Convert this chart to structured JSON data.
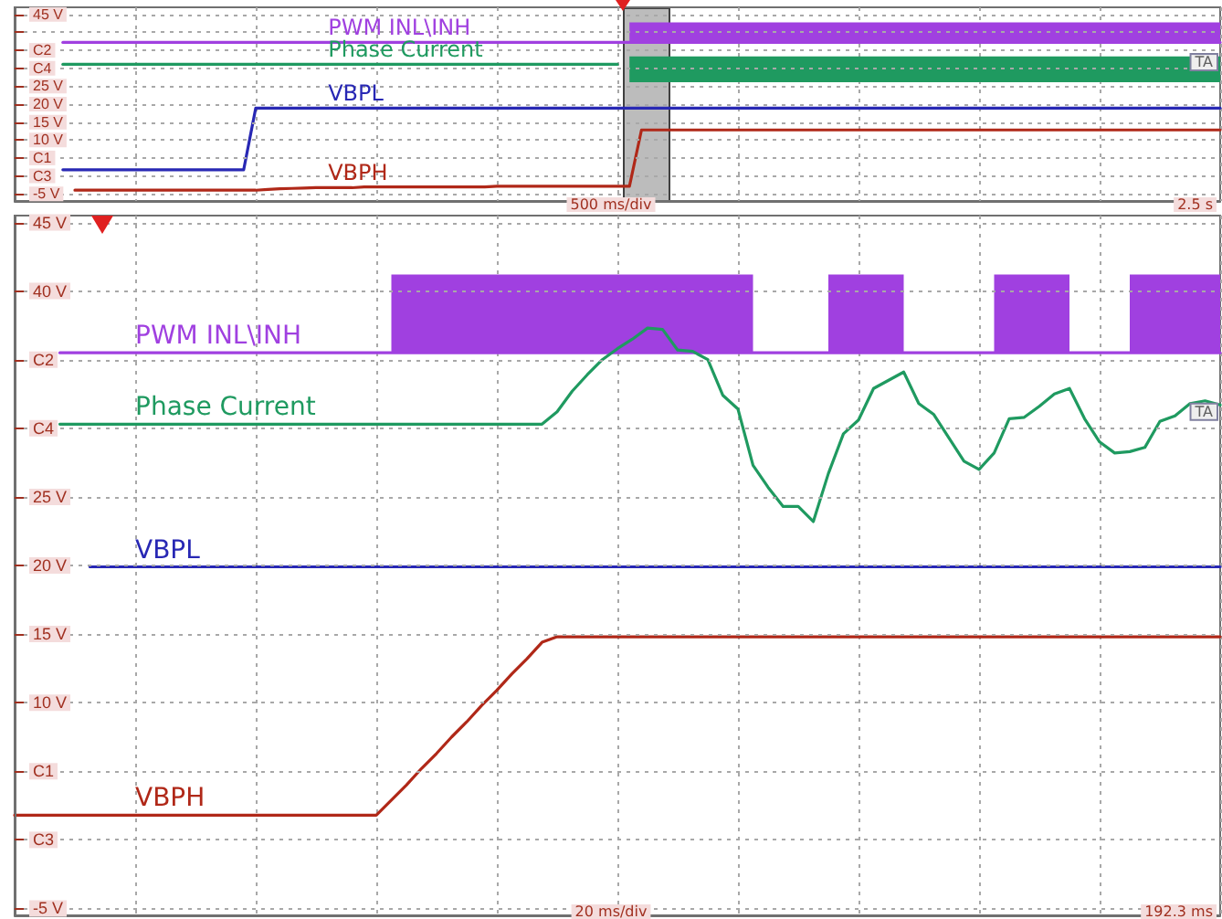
{
  "chart_data": [
    {
      "type": "line",
      "categories": [
        null,
        null,
        null,
        null,
        null,
        null,
        null,
        null,
        null,
        null,
        null,
        null,
        null,
        null,
        null,
        null,
        null,
        null,
        null,
        null,
        null,
        null,
        null,
        null,
        null,
        null,
        null,
        null,
        null,
        null,
        null,
        null,
        null,
        null,
        null,
        null,
        null,
        null,
        null,
        null,
        null,
        null,
        null,
        null,
        null,
        null,
        null,
        null,
        null,
        null,
        null,
        null,
        null,
        null,
        null,
        null,
        null,
        null,
        null,
        null,
        null,
        null,
        null,
        null,
        null,
        null,
        null,
        null,
        null,
        null,
        null,
        null,
        null,
        null,
        null,
        null,
        null,
        null,
        null,
        null,
        null,
        null,
        null,
        null,
        null,
        null,
        null,
        null,
        null,
        null,
        null,
        null,
        null,
        null,
        null,
        null,
        null,
        null,
        null,
        null,
        null
      ],
      "ylim": [
        -7,
        47
      ],
      "yticks": [
        {
          "value": -5,
          "label": "-5 V"
        },
        {
          "value": 0,
          "label": "C3"
        },
        {
          "value": 5,
          "label": "C1"
        },
        {
          "value": 10,
          "label": "10 V"
        },
        {
          "value": 15,
          "label": "15 V"
        },
        {
          "value": 20,
          "label": "20 V"
        },
        {
          "value": 25,
          "label": "25 V"
        },
        {
          "value": 30,
          "label": "C4"
        },
        {
          "value": 35,
          "label": "C2"
        },
        {
          "value": 40,
          "label": null
        },
        {
          "value": 45,
          "label": "45 V"
        }
      ],
      "tick_labels": "y",
      "grid": true,
      "legend": false,
      "annotations": [
        "500 ms/div",
        "2.5 s",
        {
          "text": "TA",
          "y": 31.7
        }
      ],
      "series": [
        {
          "name": "PWM INL\\INH",
          "color": "#a040e0",
          "values": [
            null,
            null,
            null,
            null,
            37.2,
            37.2,
            37.2,
            37.2,
            37.2,
            37.2,
            37.2,
            37.2,
            37.2,
            37.2,
            37.2,
            37.2,
            37.2,
            37.2,
            37.2,
            37.2,
            37.2,
            37.2,
            37.2,
            37.2,
            37.2,
            37.2,
            37.2,
            37.2,
            37.2,
            37.2,
            37.2,
            37.2,
            37.2,
            37.2,
            37.2,
            37.2,
            37.2,
            37.2,
            37.2,
            37.2,
            37.2,
            37.2,
            37.2,
            37.2,
            37.2,
            37.2,
            37.2,
            37.2,
            37.2,
            37.2,
            37.2,
            37.2,
            37.2,
            37.2,
            37.2,
            37.2,
            37.2,
            37.2,
            37.2,
            37.2,
            37.2,
            37.2,
            37.2,
            37.2,
            37.2,
            37.2,
            37.2,
            37.2,
            37.2,
            37.2,
            37.2,
            37.2,
            37.2,
            37.2,
            37.2,
            37.2,
            37.2,
            37.2,
            37.2,
            37.2,
            37.2,
            37.2,
            37.2,
            37.2,
            37.2,
            37.2,
            37.2,
            37.2,
            37.2,
            37.2,
            37.2,
            37.2,
            37.2,
            37.2,
            37.2,
            37.2,
            37.2,
            37.2,
            37.2,
            37.2,
            37.2
          ],
          "upper": [
            null,
            null,
            null,
            null,
            null,
            null,
            null,
            null,
            null,
            null,
            null,
            null,
            null,
            null,
            null,
            null,
            null,
            null,
            null,
            null,
            null,
            null,
            null,
            null,
            null,
            null,
            null,
            null,
            null,
            null,
            null,
            null,
            null,
            null,
            null,
            null,
            null,
            null,
            null,
            null,
            null,
            null,
            null,
            null,
            null,
            null,
            null,
            null,
            null,
            null,
            null,
            42.8,
            42.8,
            42.8,
            42.8,
            42.8,
            42.8,
            42.8,
            42.8,
            42.8,
            42.8,
            42.8,
            42.8,
            42.8,
            42.8,
            42.8,
            42.8,
            42.8,
            42.8,
            42.8,
            42.8,
            42.8,
            42.8,
            42.8,
            42.8,
            42.8,
            42.8,
            42.8,
            42.8,
            42.8,
            42.8,
            42.8,
            42.8,
            42.8,
            42.8,
            42.8,
            42.8,
            42.8,
            42.8,
            42.8,
            42.8,
            42.8,
            42.8,
            42.8,
            42.8,
            42.8,
            42.8,
            42.8,
            42.8,
            42.8,
            42.8
          ],
          "lower": [
            null,
            null,
            null,
            null,
            null,
            null,
            null,
            null,
            null,
            null,
            null,
            null,
            null,
            null,
            null,
            null,
            null,
            null,
            null,
            null,
            null,
            null,
            null,
            null,
            null,
            null,
            null,
            null,
            null,
            null,
            null,
            null,
            null,
            null,
            null,
            null,
            null,
            null,
            null,
            null,
            null,
            null,
            null,
            null,
            null,
            null,
            null,
            null,
            null,
            null,
            null,
            37.2,
            37.2,
            37.2,
            37.2,
            37.2,
            37.2,
            37.2,
            37.2,
            37.2,
            37.2,
            37.2,
            37.2,
            37.2,
            37.2,
            37.2,
            37.2,
            37.2,
            37.2,
            37.2,
            37.2,
            37.2,
            37.2,
            37.2,
            37.2,
            37.2,
            37.2,
            37.2,
            37.2,
            37.2,
            37.2,
            37.2,
            37.2,
            37.2,
            37.2,
            37.2,
            37.2,
            37.2,
            37.2,
            37.2,
            37.2,
            37.2,
            37.2,
            37.2,
            37.2,
            37.2,
            37.2,
            37.2,
            37.2,
            37.2,
            37.2
          ]
        },
        {
          "name": "Phase Current",
          "color": "#1f9a60",
          "values": [
            null,
            null,
            null,
            null,
            31.1,
            31.1,
            31.1,
            31.1,
            31.1,
            31.1,
            31.1,
            31.1,
            31.1,
            31.1,
            31.1,
            31.1,
            31.1,
            31.1,
            31.1,
            31.1,
            31.1,
            31.1,
            31.1,
            31.1,
            31.1,
            31.1,
            31.1,
            31.1,
            31.1,
            31.1,
            31.1,
            31.1,
            31.1,
            31.1,
            31.1,
            31.1,
            31.1,
            31.1,
            31.1,
            31.1,
            31.1,
            31.1,
            31.1,
            31.1,
            31.1,
            31.1,
            31.1,
            31.1,
            31.1,
            31.1,
            31.1,
            null,
            null,
            null,
            null,
            null,
            null,
            null,
            null,
            null,
            null,
            null,
            null,
            null,
            null,
            null,
            null,
            null,
            null,
            null,
            null,
            null,
            null,
            null,
            null,
            null,
            null,
            null,
            null,
            null,
            null,
            null,
            null,
            null,
            null,
            null,
            null,
            null,
            null,
            null,
            null,
            null,
            null,
            null,
            null,
            null,
            null,
            null,
            null,
            null,
            null
          ],
          "upper": [
            null,
            null,
            null,
            null,
            null,
            null,
            null,
            null,
            null,
            null,
            null,
            null,
            null,
            null,
            null,
            null,
            null,
            null,
            null,
            null,
            null,
            null,
            null,
            null,
            null,
            null,
            null,
            null,
            null,
            null,
            null,
            null,
            null,
            null,
            null,
            null,
            null,
            null,
            null,
            null,
            null,
            null,
            null,
            null,
            null,
            null,
            null,
            null,
            null,
            null,
            null,
            33.3,
            33.3,
            33.3,
            33.3,
            33.3,
            33.3,
            33.3,
            33.3,
            33.3,
            33.3,
            33.3,
            33.3,
            33.3,
            33.3,
            33.3,
            33.3,
            33.3,
            33.3,
            33.3,
            33.3,
            33.3,
            33.3,
            33.3,
            33.3,
            33.3,
            33.3,
            33.3,
            33.3,
            33.3,
            33.3,
            33.3,
            33.3,
            33.3,
            33.3,
            33.3,
            33.3,
            33.3,
            33.3,
            33.3,
            33.3,
            33.3,
            33.3,
            33.3,
            33.3,
            33.3,
            33.3,
            33.3,
            33.3,
            33.3,
            33.3
          ],
          "lower": [
            null,
            null,
            null,
            null,
            null,
            null,
            null,
            null,
            null,
            null,
            null,
            null,
            null,
            null,
            null,
            null,
            null,
            null,
            null,
            null,
            null,
            null,
            null,
            null,
            null,
            null,
            null,
            null,
            null,
            null,
            null,
            null,
            null,
            null,
            null,
            null,
            null,
            null,
            null,
            null,
            null,
            null,
            null,
            null,
            null,
            null,
            null,
            null,
            null,
            null,
            null,
            26.1,
            26.1,
            26.1,
            26.1,
            26.1,
            26.1,
            26.1,
            26.1,
            26.1,
            26.1,
            26.1,
            26.1,
            26.1,
            26.1,
            26.1,
            26.1,
            26.1,
            26.1,
            26.1,
            26.1,
            26.1,
            26.1,
            26.1,
            26.1,
            26.1,
            26.1,
            26.1,
            26.1,
            26.1,
            26.1,
            26.1,
            26.1,
            26.1,
            26.1,
            26.1,
            26.1,
            26.1,
            26.1,
            26.1,
            26.1,
            26.1,
            26.1,
            26.1,
            26.1,
            26.1,
            26.1,
            26.1,
            26.1,
            26.1,
            26.1
          ]
        },
        {
          "name": "VBPL",
          "color": "#2828b4",
          "values": [
            null,
            null,
            null,
            null,
            1.7,
            1.7,
            1.7,
            1.7,
            1.7,
            1.7,
            1.7,
            1.7,
            1.7,
            1.7,
            1.7,
            1.7,
            1.7,
            1.7,
            1.7,
            1.7,
            18.9,
            18.9,
            18.9,
            18.9,
            18.9,
            18.9,
            18.9,
            18.9,
            18.9,
            18.9,
            18.9,
            18.9,
            18.9,
            18.9,
            18.9,
            18.9,
            18.9,
            18.9,
            18.9,
            18.9,
            18.9,
            18.9,
            18.9,
            18.9,
            18.9,
            18.9,
            18.9,
            18.9,
            18.9,
            18.9,
            18.9,
            18.9,
            18.9,
            18.9,
            18.9,
            18.9,
            18.9,
            18.9,
            18.9,
            18.9,
            18.9,
            18.9,
            18.9,
            18.9,
            18.9,
            18.9,
            18.9,
            18.9,
            18.9,
            18.9,
            18.9,
            18.9,
            18.9,
            18.9,
            18.9,
            18.9,
            18.9,
            18.9,
            18.9,
            18.9,
            18.9,
            18.9,
            18.9,
            18.9,
            18.9,
            18.9,
            18.9,
            18.9,
            18.9,
            18.9,
            18.9,
            18.9,
            18.9,
            18.9,
            18.9,
            18.9,
            18.9,
            18.9,
            18.9,
            18.9,
            18.9
          ]
        },
        {
          "name": "VBPH",
          "color": "#b02818",
          "values": [
            null,
            null,
            null,
            null,
            null,
            -4.0,
            -4.0,
            -4.0,
            -4.0,
            -4.0,
            -4.0,
            -4.0,
            -4.0,
            -4.0,
            -4.0,
            -4.0,
            -4.0,
            -4.0,
            -4.0,
            -4.0,
            -4.0,
            -3.8,
            -3.6,
            -3.5,
            -3.4,
            -3.3,
            -3.3,
            -3.3,
            -3.3,
            -3.1,
            -3.1,
            -3.1,
            -3.1,
            -3.1,
            -3.1,
            -3.1,
            -3.1,
            -3.1,
            -3.1,
            -3.1,
            -2.9,
            -2.9,
            -2.9,
            -2.9,
            -2.9,
            -2.9,
            -2.9,
            -2.9,
            -2.9,
            -2.9,
            -2.9,
            -2.9,
            12.8,
            12.8,
            12.8,
            12.8,
            12.8,
            12.8,
            12.8,
            12.8,
            12.8,
            12.8,
            12.8,
            12.8,
            12.8,
            12.8,
            12.8,
            12.8,
            12.8,
            12.8,
            12.8,
            12.8,
            12.8,
            12.8,
            12.8,
            12.8,
            12.8,
            12.8,
            12.8,
            12.8,
            12.8,
            12.8,
            12.8,
            12.8,
            12.8,
            12.8,
            12.8,
            12.8,
            12.8,
            12.8,
            12.8,
            12.8,
            12.8,
            12.8,
            12.8,
            12.8,
            12.8,
            12.8,
            12.8,
            12.8,
            12.8
          ]
        }
      ]
    },
    {
      "type": "line",
      "categories": [
        null,
        null,
        null,
        null,
        null,
        null,
        null,
        null,
        null,
        null,
        null,
        null,
        null,
        null,
        null,
        null,
        null,
        null,
        null,
        null,
        null,
        null,
        null,
        null,
        null,
        null,
        null,
        null,
        null,
        null,
        null,
        null,
        null,
        null,
        null,
        null,
        null,
        null,
        null,
        null,
        null,
        null,
        null,
        null,
        null,
        null,
        null,
        null,
        null,
        null,
        null,
        null,
        null,
        null,
        null,
        null,
        null,
        null,
        null,
        null,
        null,
        null,
        null,
        null,
        null,
        null,
        null,
        null,
        null,
        null,
        null,
        null,
        null,
        null,
        null,
        null,
        null,
        null,
        null,
        null,
        null
      ],
      "ylim": [
        -5.5,
        45.5
      ],
      "yticks": [
        {
          "value": -5,
          "label": "-5 V"
        },
        {
          "value": 0,
          "label": "C3"
        },
        {
          "value": 5,
          "label": "C1"
        },
        {
          "value": 10,
          "label": "10 V"
        },
        {
          "value": 15,
          "label": "15 V"
        },
        {
          "value": 20,
          "label": "20 V"
        },
        {
          "value": 25,
          "label": "25 V"
        },
        {
          "value": 30,
          "label": "C4"
        },
        {
          "value": 35,
          "label": "C2"
        },
        {
          "value": 40,
          "label": "40 V"
        },
        {
          "value": 45,
          "label": "45 V"
        }
      ],
      "tick_labels": "y",
      "grid": true,
      "legend": false,
      "annotations": [
        "20 ms/div",
        "192.3 ms",
        {
          "text": "TA",
          "y": 31.2
        }
      ],
      "series": [
        {
          "name": "PWM INL\\INH",
          "color": "#a040e0",
          "values": [
            null,
            null,
            null,
            35.5,
            35.5,
            35.5,
            35.5,
            35.5,
            35.5,
            35.5,
            35.5,
            35.5,
            35.5,
            35.5,
            35.5,
            35.5,
            35.5,
            35.5,
            35.5,
            35.5,
            35.5,
            35.5,
            35.5,
            35.5,
            35.5,
            35.5,
            35.5,
            35.5,
            35.5,
            35.5,
            35.5,
            35.5,
            35.5,
            35.5,
            35.5,
            35.5,
            35.5,
            35.5,
            35.5,
            35.5,
            35.5,
            35.5,
            35.5,
            35.5,
            35.5,
            35.5,
            35.5,
            35.5,
            35.5,
            35.5,
            35.5,
            35.5,
            35.5,
            35.5,
            35.5,
            35.5,
            35.5,
            35.5,
            35.5,
            35.5,
            35.5,
            35.5,
            35.5,
            35.5,
            35.5,
            35.5,
            35.5,
            35.5,
            35.5,
            35.5,
            35.5,
            35.5,
            35.5,
            35.5,
            35.5,
            35.5,
            35.5,
            35.5,
            35.5,
            35.5,
            35.5
          ],
          "upper": [
            null,
            null,
            null,
            null,
            null,
            null,
            null,
            null,
            null,
            null,
            null,
            null,
            null,
            null,
            null,
            null,
            null,
            null,
            null,
            null,
            null,
            null,
            null,
            null,
            null,
            41.2,
            41.2,
            41.2,
            41.2,
            41.2,
            41.2,
            41.2,
            41.2,
            41.2,
            41.2,
            41.2,
            41.2,
            41.2,
            41.2,
            41.2,
            41.2,
            41.2,
            41.2,
            41.2,
            41.2,
            41.2,
            41.2,
            41.2,
            41.2,
            41.2,
            null,
            null,
            null,
            null,
            41.2,
            41.2,
            41.2,
            41.2,
            41.2,
            41.2,
            null,
            null,
            null,
            null,
            null,
            41.2,
            41.2,
            41.2,
            41.2,
            41.2,
            41.2,
            null,
            null,
            null,
            41.2,
            41.2,
            41.2,
            41.2,
            41.2,
            41.2,
            41.2
          ],
          "lower": [
            null,
            null,
            null,
            null,
            null,
            null,
            null,
            null,
            null,
            null,
            null,
            null,
            null,
            null,
            null,
            null,
            null,
            null,
            null,
            null,
            null,
            null,
            null,
            null,
            null,
            35.5,
            35.5,
            35.5,
            35.5,
            35.5,
            35.5,
            35.5,
            35.5,
            35.5,
            35.5,
            35.5,
            35.5,
            35.5,
            35.5,
            35.5,
            35.5,
            35.5,
            35.5,
            35.5,
            35.5,
            35.5,
            35.5,
            35.5,
            35.5,
            35.5,
            null,
            null,
            null,
            null,
            35.5,
            35.5,
            35.5,
            35.5,
            35.5,
            35.5,
            null,
            null,
            null,
            null,
            null,
            35.5,
            35.5,
            35.5,
            35.5,
            35.5,
            35.5,
            null,
            null,
            null,
            35.5,
            35.5,
            35.5,
            35.5,
            35.5,
            35.5,
            35.5
          ]
        },
        {
          "name": "Phase Current",
          "color": "#1f9a60",
          "values": [
            null,
            null,
            null,
            30.3,
            30.3,
            30.3,
            30.3,
            30.3,
            30.3,
            30.3,
            30.3,
            30.3,
            30.3,
            30.3,
            30.3,
            30.3,
            30.3,
            30.3,
            30.3,
            30.3,
            30.3,
            30.3,
            30.3,
            30.3,
            30.3,
            30.3,
            30.3,
            30.3,
            30.3,
            30.3,
            30.3,
            30.3,
            30.3,
            30.3,
            30.3,
            30.3,
            31.2,
            32.7,
            33.9,
            35.0,
            35.8,
            36.5,
            37.3,
            37.2,
            35.7,
            35.6,
            35.0,
            32.4,
            31.4,
            27.3,
            25.7,
            24.3,
            24.3,
            23.2,
            26.7,
            29.6,
            30.6,
            32.9,
            33.5,
            34.1,
            31.8,
            31.0,
            29.3,
            27.6,
            27.0,
            28.2,
            30.7,
            30.8,
            31.6,
            32.5,
            32.9,
            30.7,
            29.0,
            28.2,
            28.3,
            28.6,
            30.5,
            30.9,
            31.8,
            32.0,
            31.7
          ]
        },
        {
          "name": "VBPL",
          "color": "#2828b4",
          "values": [
            null,
            null,
            null,
            null,
            null,
            19.9,
            19.9,
            19.9,
            19.9,
            19.9,
            19.9,
            19.9,
            19.9,
            19.9,
            19.9,
            19.9,
            19.9,
            19.9,
            19.9,
            19.9,
            19.9,
            19.9,
            19.9,
            19.9,
            19.9,
            19.9,
            19.9,
            19.9,
            19.9,
            19.9,
            19.9,
            19.9,
            19.9,
            19.9,
            19.9,
            19.9,
            19.9,
            19.9,
            19.9,
            19.9,
            19.9,
            19.9,
            19.9,
            19.9,
            19.9,
            19.9,
            19.9,
            19.9,
            19.9,
            19.9,
            19.9,
            19.9,
            19.9,
            19.9,
            19.9,
            19.9,
            19.9,
            19.9,
            19.9,
            19.9,
            19.9,
            19.9,
            19.9,
            19.9,
            19.9,
            19.9,
            19.9,
            19.9,
            19.9,
            19.9,
            19.9,
            19.9,
            19.9,
            19.9,
            19.9,
            19.9,
            19.9,
            19.9,
            19.9,
            19.9,
            19.9
          ]
        },
        {
          "name": "VBPH",
          "color": "#b02818",
          "values": [
            1.8,
            1.8,
            1.8,
            1.8,
            1.8,
            1.8,
            1.8,
            1.8,
            1.8,
            1.8,
            1.8,
            1.8,
            1.8,
            1.8,
            1.8,
            1.8,
            1.8,
            1.8,
            1.8,
            1.8,
            1.8,
            1.8,
            1.8,
            1.8,
            1.8,
            2.9,
            4.0,
            5.2,
            6.3,
            7.5,
            8.6,
            9.8,
            10.9,
            12.1,
            13.2,
            14.4,
            14.8,
            14.8,
            14.8,
            14.8,
            14.8,
            14.8,
            14.8,
            14.8,
            14.8,
            14.8,
            14.8,
            14.8,
            14.8,
            14.8,
            14.8,
            14.8,
            14.8,
            14.8,
            14.8,
            14.8,
            14.8,
            14.8,
            14.8,
            14.8,
            14.8,
            14.8,
            14.8,
            14.8,
            14.8,
            14.8,
            14.8,
            14.8,
            14.8,
            14.8,
            14.8,
            14.8,
            14.8,
            14.8,
            14.8,
            14.8,
            14.8,
            14.8,
            14.8,
            14.8,
            14.8
          ]
        }
      ]
    }
  ]
}
